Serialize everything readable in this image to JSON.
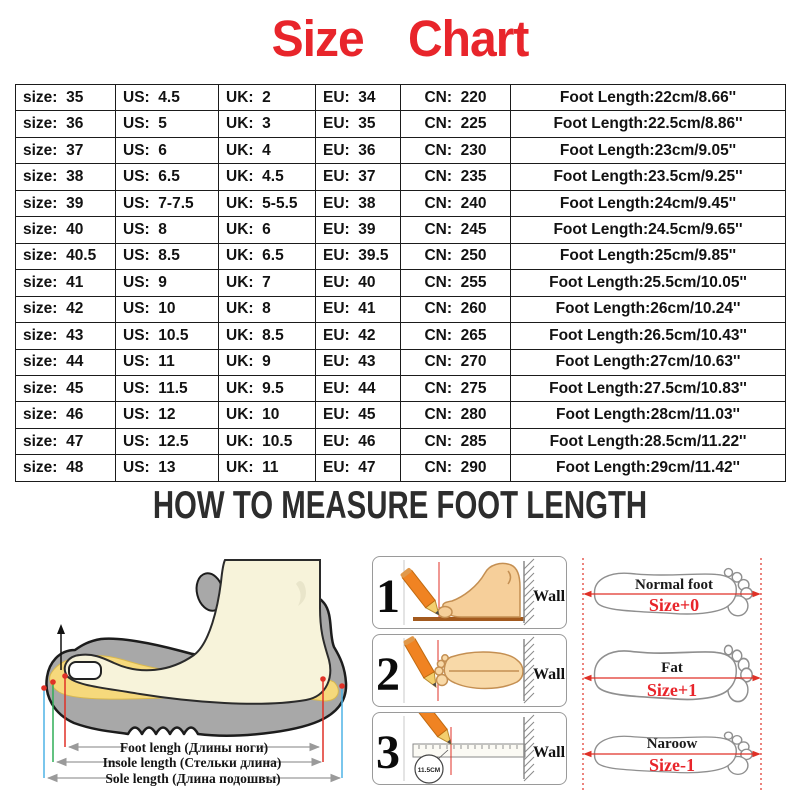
{
  "title": "Size Chart",
  "colors": {
    "accent_red": "#e8252b",
    "heading_dark": "#2d2d2d",
    "measure_red": "#e03127",
    "measure_green": "#2fae57",
    "measure_blue": "#4db3e6",
    "pencil_orange": "#f08322",
    "foot_skin": "#f6cf9a",
    "floor_brown": "#a35a1e",
    "insole_yellow": "#f6d97c",
    "shoe_gray": "#a8a8a8",
    "foot_cream": "#f7f3da"
  },
  "table": {
    "columns": [
      "size",
      "us",
      "uk",
      "eu",
      "cn",
      "foot-length"
    ],
    "rows": [
      [
        "size:  35",
        "US:  4.5",
        "UK:  2",
        "EU:  34",
        "CN:  220",
        "Foot Length:22cm/8.66''"
      ],
      [
        "size:  36",
        "US:  5",
        "UK:  3",
        "EU:  35",
        "CN:  225",
        "Foot Length:22.5cm/8.86''"
      ],
      [
        "size:  37",
        "US:  6",
        "UK:  4",
        "EU:  36",
        "CN:  230",
        "Foot Length:23cm/9.05''"
      ],
      [
        "size:  38",
        "US:  6.5",
        "UK:  4.5",
        "EU:  37",
        "CN:  235",
        "Foot Length:23.5cm/9.25''"
      ],
      [
        "size:  39",
        "US:  7-7.5",
        "UK:  5-5.5",
        "EU:  38",
        "CN:  240",
        "Foot Length:24cm/9.45''"
      ],
      [
        "size:  40",
        "US:  8",
        "UK:  6",
        "EU:  39",
        "CN:  245",
        "Foot Length:24.5cm/9.65''"
      ],
      [
        "size:  40.5",
        "US:  8.5",
        "UK:  6.5",
        "EU:  39.5",
        "CN:  250",
        "Foot Length:25cm/9.85''"
      ],
      [
        "size:  41",
        "US:  9",
        "UK:  7",
        "EU:  40",
        "CN:  255",
        "Foot Length:25.5cm/10.05''"
      ],
      [
        "size:  42",
        "US:  10",
        "UK:  8",
        "EU:  41",
        "CN:  260",
        "Foot Length:26cm/10.24''"
      ],
      [
        "size:  43",
        "US:  10.5",
        "UK:  8.5",
        "EU:  42",
        "CN:  265",
        "Foot Length:26.5cm/10.43''"
      ],
      [
        "size:  44",
        "US:  11",
        "UK:  9",
        "EU:  43",
        "CN:  270",
        "Foot Length:27cm/10.63''"
      ],
      [
        "size:  45",
        "US:  11.5",
        "UK:  9.5",
        "EU:  44",
        "CN:  275",
        "Foot Length:27.5cm/10.83''"
      ],
      [
        "size:  46",
        "US:  12",
        "UK:  10",
        "EU:  45",
        "CN:  280",
        "Foot Length:28cm/11.03''"
      ],
      [
        "size:  47",
        "US:  12.5",
        "UK:  10.5",
        "EU:  46",
        "CN:  285",
        "Foot Length:28.5cm/11.22''"
      ],
      [
        "size:  48",
        "US:  13",
        "UK:  11",
        "EU:  47",
        "CN:  290",
        "Foot Length:29cm/11.42''"
      ]
    ]
  },
  "section_heading": "HOW TO MEASURE FOOT LENGTH",
  "shoe_diagram": {
    "labels": {
      "foot_length": "Foot lengh (Длины ноги)",
      "insole_length": "Insole length (Стельки длина)",
      "sole_length": "Sole length (Длина подошвы)"
    }
  },
  "steps": [
    {
      "number": "1",
      "wall_label": "Wall"
    },
    {
      "number": "2",
      "wall_label": "Wall"
    },
    {
      "number": "3",
      "wall_label": "Wall",
      "ruler_note": "11.5CM"
    }
  ],
  "foot_types": [
    {
      "name": "Normal foot",
      "size_label": "Size+0"
    },
    {
      "name": "Fat",
      "size_label": "Size+1"
    },
    {
      "name": "Naroow",
      "size_label": "Size-1"
    }
  ]
}
